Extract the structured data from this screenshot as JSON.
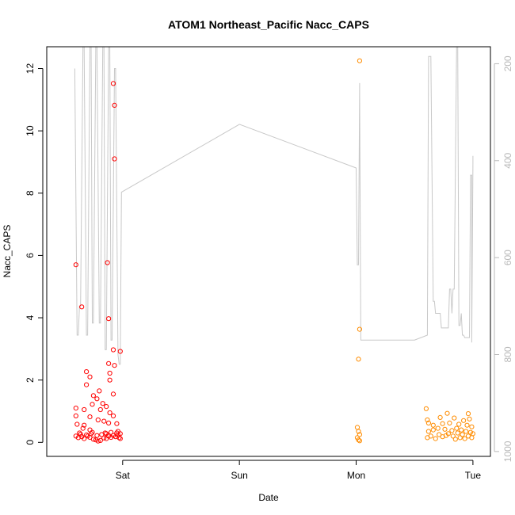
{
  "chart_data": {
    "type": "scatter",
    "title": "ATOM1 Northeast_Pacific Nacc_CAPS",
    "xlabel": "Date",
    "ylabel": "Nacc_CAPS",
    "x_ticks": [
      "Sat",
      "Sun",
      "Mon",
      "Tue"
    ],
    "x_tick_values": [
      1,
      2,
      3,
      4
    ],
    "xlim": [
      0.35,
      4.15
    ],
    "ylim": [
      -0.45,
      12.7
    ],
    "y_ticks": [
      0,
      2,
      4,
      6,
      8,
      10,
      12
    ],
    "y2_ticks": [
      200,
      400,
      600,
      800,
      1000
    ],
    "y2lim": [
      1010,
      165
    ],
    "colors": {
      "red": "#ff0000",
      "orange": "#ff8c00",
      "pressure": "#c8c8c8",
      "axis": "#000000",
      "right_axis": "#b8b8b8"
    },
    "series": [
      {
        "color": "red",
        "points": [
          [
            0.6,
            5.7
          ],
          [
            0.65,
            4.35
          ],
          [
            0.87,
            5.77
          ],
          [
            0.88,
            3.97
          ],
          [
            0.92,
            11.52
          ],
          [
            0.93,
            10.82
          ],
          [
            0.93,
            9.1
          ],
          [
            0.92,
            2.97
          ],
          [
            0.98,
            2.92
          ],
          [
            0.93,
            2.47
          ],
          [
            0.88,
            2.53
          ],
          [
            0.89,
            2.22
          ],
          [
            0.89,
            2.0
          ],
          [
            0.69,
            2.27
          ],
          [
            0.72,
            2.1
          ],
          [
            0.69,
            1.85
          ],
          [
            0.8,
            1.65
          ],
          [
            0.92,
            1.55
          ],
          [
            0.75,
            1.5
          ],
          [
            0.78,
            1.4
          ],
          [
            0.83,
            1.25
          ],
          [
            0.74,
            1.22
          ],
          [
            0.86,
            1.15
          ],
          [
            0.6,
            1.1
          ],
          [
            0.67,
            1.05
          ],
          [
            0.81,
            1.05
          ],
          [
            0.89,
            0.95
          ],
          [
            0.92,
            0.85
          ],
          [
            0.72,
            0.82
          ],
          [
            0.6,
            0.85
          ],
          [
            0.79,
            0.72
          ],
          [
            0.84,
            0.68
          ],
          [
            0.88,
            0.62
          ],
          [
            0.95,
            0.6
          ],
          [
            0.61,
            0.58
          ],
          [
            0.67,
            0.55
          ],
          [
            0.66,
            0.45
          ],
          [
            0.72,
            0.4
          ],
          [
            0.74,
            0.32
          ],
          [
            0.63,
            0.3
          ],
          [
            0.85,
            0.3
          ],
          [
            0.9,
            0.32
          ],
          [
            0.96,
            0.35
          ],
          [
            0.98,
            0.28
          ],
          [
            0.6,
            0.2
          ],
          [
            0.62,
            0.15
          ],
          [
            0.65,
            0.18
          ],
          [
            0.67,
            0.12
          ],
          [
            0.7,
            0.2
          ],
          [
            0.72,
            0.16
          ],
          [
            0.75,
            0.1
          ],
          [
            0.77,
            0.08
          ],
          [
            0.79,
            0.04
          ],
          [
            0.81,
            0.06
          ],
          [
            0.84,
            0.14
          ],
          [
            0.86,
            0.12
          ],
          [
            0.88,
            0.2
          ],
          [
            0.9,
            0.16
          ],
          [
            0.92,
            0.22
          ],
          [
            0.94,
            0.18
          ],
          [
            0.96,
            0.24
          ],
          [
            0.97,
            0.15
          ],
          [
            0.98,
            0.12
          ],
          [
            0.64,
            0.26
          ],
          [
            0.69,
            0.24
          ],
          [
            0.73,
            0.28
          ],
          [
            0.78,
            0.22
          ],
          [
            0.82,
            0.25
          ],
          [
            0.86,
            0.28
          ],
          [
            0.95,
            0.3
          ]
        ]
      },
      {
        "color": "orange",
        "points": [
          [
            3.03,
            12.25
          ],
          [
            3.03,
            3.63
          ],
          [
            3.02,
            2.67
          ],
          [
            3.01,
            0.48
          ],
          [
            3.02,
            0.35
          ],
          [
            3.03,
            0.25
          ],
          [
            3.01,
            0.15
          ],
          [
            3.02,
            0.08
          ],
          [
            3.03,
            0.05
          ],
          [
            3.6,
            1.08
          ],
          [
            3.61,
            0.72
          ],
          [
            3.62,
            0.62
          ],
          [
            3.78,
            0.93
          ],
          [
            3.96,
            0.92
          ],
          [
            3.72,
            0.8
          ],
          [
            3.84,
            0.78
          ],
          [
            3.92,
            0.7
          ],
          [
            3.97,
            0.75
          ],
          [
            3.66,
            0.55
          ],
          [
            3.74,
            0.6
          ],
          [
            3.8,
            0.62
          ],
          [
            3.88,
            0.58
          ],
          [
            3.95,
            0.55
          ],
          [
            3.99,
            0.5
          ],
          [
            3.62,
            0.35
          ],
          [
            3.66,
            0.4
          ],
          [
            3.7,
            0.45
          ],
          [
            3.76,
            0.42
          ],
          [
            3.82,
            0.38
          ],
          [
            3.86,
            0.45
          ],
          [
            3.9,
            0.4
          ],
          [
            3.94,
            0.35
          ],
          [
            3.98,
            0.32
          ],
          [
            3.61,
            0.15
          ],
          [
            3.64,
            0.2
          ],
          [
            3.68,
            0.12
          ],
          [
            3.71,
            0.25
          ],
          [
            3.74,
            0.18
          ],
          [
            3.77,
            0.22
          ],
          [
            3.79,
            0.28
          ],
          [
            3.83,
            0.2
          ],
          [
            3.85,
            0.1
          ],
          [
            3.87,
            0.3
          ],
          [
            3.89,
            0.15
          ],
          [
            3.91,
            0.25
          ],
          [
            3.93,
            0.12
          ],
          [
            3.96,
            0.2
          ],
          [
            3.99,
            0.15
          ],
          [
            4.0,
            0.28
          ]
        ]
      }
    ],
    "pressure_line": [
      [
        0.59,
        210
      ],
      [
        0.61,
        760
      ],
      [
        0.62,
        760
      ],
      [
        0.63,
        700
      ],
      [
        0.64,
        700
      ],
      [
        0.66,
        165
      ],
      [
        0.67,
        165
      ],
      [
        0.69,
        760
      ],
      [
        0.7,
        760
      ],
      [
        0.72,
        165
      ],
      [
        0.73,
        165
      ],
      [
        0.74,
        735
      ],
      [
        0.75,
        735
      ],
      [
        0.77,
        165
      ],
      [
        0.78,
        165
      ],
      [
        0.8,
        735
      ],
      [
        0.81,
        735
      ],
      [
        0.83,
        165
      ],
      [
        0.84,
        165
      ],
      [
        0.85,
        790
      ],
      [
        0.86,
        790
      ],
      [
        0.88,
        165
      ],
      [
        0.89,
        165
      ],
      [
        0.9,
        770
      ],
      [
        0.91,
        770
      ],
      [
        0.93,
        210
      ],
      [
        0.94,
        210
      ],
      [
        0.96,
        800
      ],
      [
        0.97,
        820
      ],
      [
        0.98,
        820
      ],
      [
        0.99,
        465
      ],
      [
        2.0,
        325
      ],
      [
        3.0,
        415
      ],
      [
        3.01,
        615
      ],
      [
        3.02,
        615
      ],
      [
        3.03,
        240
      ],
      [
        3.03,
        260
      ],
      [
        3.04,
        770
      ],
      [
        3.5,
        770
      ],
      [
        3.61,
        760
      ],
      [
        3.62,
        185
      ],
      [
        3.64,
        185
      ],
      [
        3.66,
        690
      ],
      [
        3.67,
        690
      ],
      [
        3.68,
        715
      ],
      [
        3.72,
        715
      ],
      [
        3.73,
        745
      ],
      [
        3.79,
        745
      ],
      [
        3.8,
        665
      ],
      [
        3.81,
        665
      ],
      [
        3.82,
        715
      ],
      [
        3.83,
        665
      ],
      [
        3.84,
        665
      ],
      [
        3.86,
        165
      ],
      [
        3.87,
        165
      ],
      [
        3.88,
        740
      ],
      [
        3.89,
        740
      ],
      [
        3.9,
        715
      ],
      [
        3.91,
        760
      ],
      [
        3.92,
        760
      ],
      [
        3.93,
        765
      ],
      [
        3.97,
        765
      ],
      [
        3.98,
        430
      ],
      [
        3.99,
        430
      ],
      [
        3.99,
        775
      ],
      [
        4.0,
        405
      ],
      [
        4.0,
        390
      ]
    ]
  }
}
